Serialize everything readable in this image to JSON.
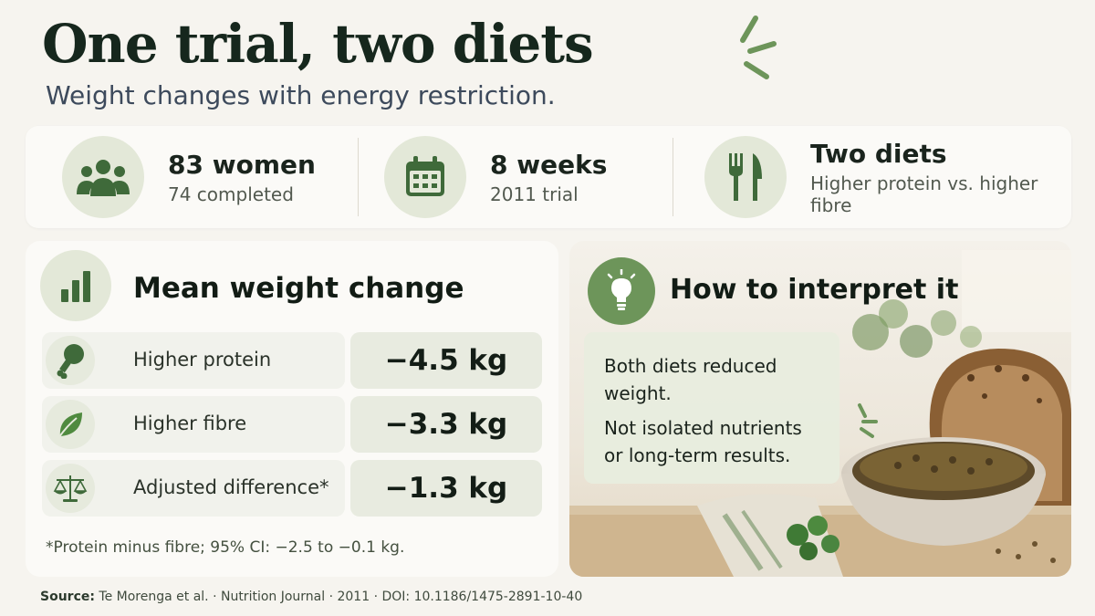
{
  "header": {
    "title": "One trial, two diets",
    "subtitle": "Weight changes with energy restriction."
  },
  "stats": [
    {
      "main": "83 women",
      "sub": "74 completed",
      "icon": "people-icon"
    },
    {
      "main": "8 weeks",
      "sub": "2011 trial",
      "icon": "calendar-icon"
    },
    {
      "main": "Two diets",
      "sub": "Higher protein vs. higher fibre",
      "icon": "fork-knife-icon"
    }
  ],
  "weight_panel": {
    "title": "Mean weight change",
    "icon": "bar-chart-icon",
    "rows": [
      {
        "label": "Higher protein",
        "value": "−4.5 kg",
        "icon": "drumstick-icon"
      },
      {
        "label": "Higher fibre",
        "value": "−3.3 kg",
        "icon": "leaf-icon"
      },
      {
        "label": "Adjusted difference*",
        "value": "−1.3 kg",
        "icon": "scale-icon"
      }
    ],
    "footnote": "*Protein minus fibre; 95% CI: −2.5 to −0.1 kg."
  },
  "interpret_panel": {
    "title": "How to interpret it",
    "icon": "lightbulb-icon",
    "paragraphs": [
      "Both diets reduced weight.",
      "Not isolated nutrients or long-term results."
    ]
  },
  "source": {
    "label": "Source:",
    "text": "Te Morenga et al. · Nutrition Journal · 2011 · DOI: 10.1186/1475-2891-10-40"
  },
  "colors": {
    "accent_green": "#6d955a",
    "icon_green": "#3f6a3a",
    "soft_green": "#e3e8d8"
  }
}
